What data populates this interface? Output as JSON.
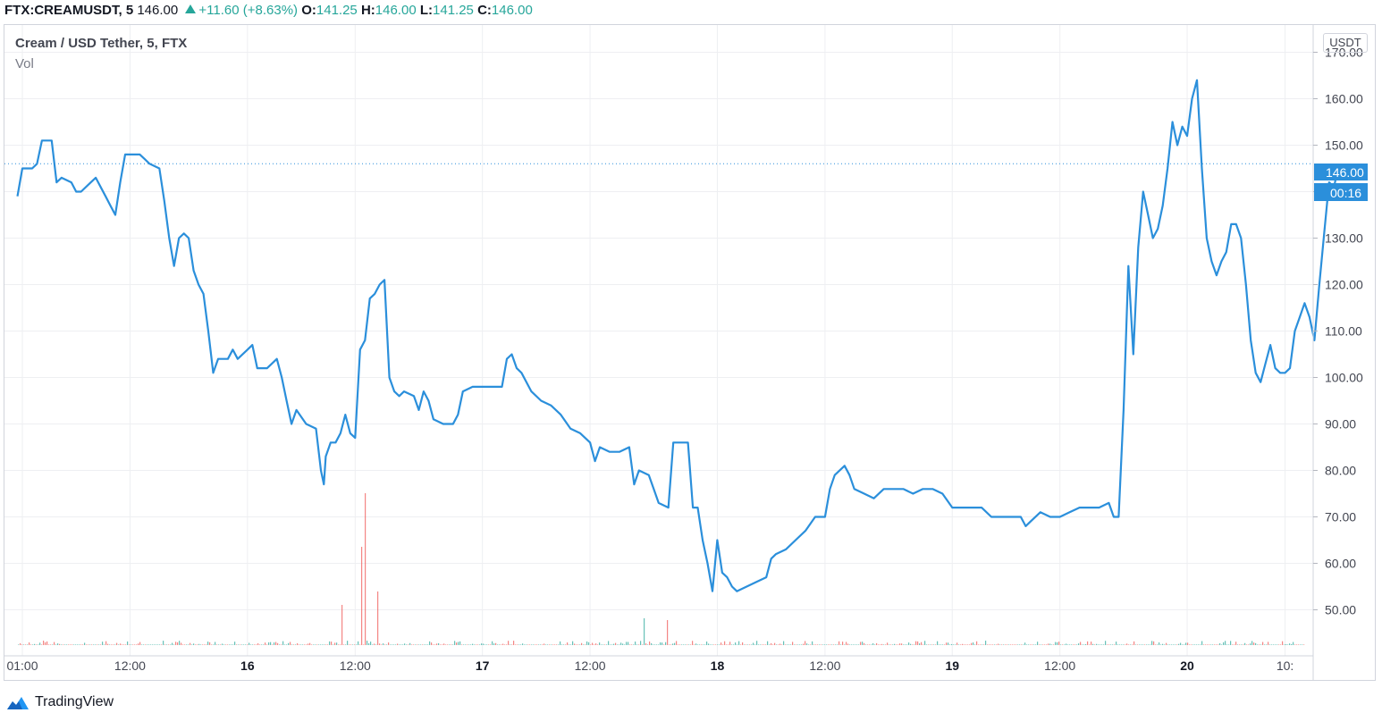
{
  "header": {
    "symbol": "FTX:CREAMUSDT, 5",
    "last": "146.00",
    "change": "+11.60 (+8.63%)",
    "o_label": "O:",
    "o_value": "141.25",
    "h_label": "H:",
    "h_value": "146.00",
    "l_label": "L:",
    "l_value": "141.25",
    "c_label": "C:",
    "c_value": "146.00"
  },
  "legend": {
    "title": "Cream / USD Tether, 5, FTX",
    "volume": "Vol"
  },
  "price_axis": {
    "currency": "USDT",
    "last_price_label": "146.00",
    "countdown": "00:16"
  },
  "footer": {
    "brand": "TradingView"
  },
  "colors": {
    "line": "#2b8fdb",
    "up": "#26a69a",
    "down": "#ef5350",
    "grid": "#eeeff2"
  },
  "chart_data": {
    "type": "line",
    "x_ticks": [
      {
        "t": 0,
        "label": "01:00"
      },
      {
        "t": 11,
        "label": "12:00"
      },
      {
        "t": 23,
        "label": "16"
      },
      {
        "t": 34,
        "label": "12:00"
      },
      {
        "t": 47,
        "label": "17"
      },
      {
        "t": 58,
        "label": "12:00"
      },
      {
        "t": 71,
        "label": "18"
      },
      {
        "t": 82,
        "label": "12:00"
      },
      {
        "t": 95,
        "label": "19"
      },
      {
        "t": 106,
        "label": "12:00"
      },
      {
        "t": 119,
        "label": "20"
      },
      {
        "t": 129,
        "label": "10:"
      }
    ],
    "y_ticks": [
      "170.00",
      "160.00",
      "150.00",
      "140.00",
      "130.00",
      "120.00",
      "110.00",
      "100.00",
      "90.00",
      "80.00",
      "70.00",
      "60.00",
      "50.00"
    ],
    "y_tick_values": [
      170,
      160,
      150,
      140,
      130,
      120,
      110,
      100,
      90,
      80,
      70,
      60,
      50
    ],
    "ylim": [
      42.4,
      175.6
    ],
    "xlim": [
      -1,
      131
    ],
    "last_value": 146,
    "series": [
      {
        "points": [
          [
            -0.5,
            139
          ],
          [
            0,
            145
          ],
          [
            1,
            145
          ],
          [
            1.5,
            146
          ],
          [
            2,
            151
          ],
          [
            3,
            151
          ],
          [
            3.5,
            142
          ],
          [
            4,
            143
          ],
          [
            5,
            142
          ],
          [
            5.5,
            140
          ],
          [
            6,
            140
          ],
          [
            7,
            142
          ],
          [
            7.5,
            143
          ],
          [
            8,
            141
          ],
          [
            8.5,
            139
          ],
          [
            9,
            137
          ],
          [
            9.5,
            135
          ],
          [
            10,
            142
          ],
          [
            10.5,
            148
          ],
          [
            11,
            148
          ],
          [
            12,
            148
          ],
          [
            12.5,
            147
          ],
          [
            13,
            146
          ],
          [
            14,
            145
          ],
          [
            14.5,
            138
          ],
          [
            15,
            130
          ],
          [
            15.5,
            124
          ],
          [
            16,
            130
          ],
          [
            16.5,
            131
          ],
          [
            17,
            130
          ],
          [
            17.5,
            123
          ],
          [
            18,
            120
          ],
          [
            18.5,
            118
          ],
          [
            19,
            110
          ],
          [
            19.5,
            101
          ],
          [
            20,
            104
          ],
          [
            21,
            104
          ],
          [
            21.5,
            106
          ],
          [
            22,
            104
          ],
          [
            23,
            106
          ],
          [
            23.5,
            107
          ],
          [
            24,
            102
          ],
          [
            25,
            102
          ],
          [
            26,
            104
          ],
          [
            26.5,
            100
          ],
          [
            27,
            95
          ],
          [
            27.5,
            90
          ],
          [
            28,
            93
          ],
          [
            29,
            90
          ],
          [
            30,
            89
          ],
          [
            30.5,
            80
          ],
          [
            30.8,
            77
          ],
          [
            31,
            83
          ],
          [
            31.5,
            86
          ],
          [
            32,
            86
          ],
          [
            32.5,
            88
          ],
          [
            33,
            92
          ],
          [
            33.5,
            88
          ],
          [
            34,
            87
          ],
          [
            34.5,
            106
          ],
          [
            35,
            108
          ],
          [
            35.5,
            117
          ],
          [
            36,
            118
          ],
          [
            36.5,
            120
          ],
          [
            37,
            121
          ],
          [
            37.5,
            100
          ],
          [
            38,
            97
          ],
          [
            38.5,
            96
          ],
          [
            39,
            97
          ],
          [
            40,
            96
          ],
          [
            40.5,
            93
          ],
          [
            41,
            97
          ],
          [
            41.5,
            95
          ],
          [
            42,
            91
          ],
          [
            43,
            90
          ],
          [
            44,
            90
          ],
          [
            44.5,
            92
          ],
          [
            45,
            97
          ],
          [
            46,
            98
          ],
          [
            47,
            98
          ],
          [
            48,
            98
          ],
          [
            49,
            98
          ],
          [
            49.5,
            104
          ],
          [
            50,
            105
          ],
          [
            50.5,
            102
          ],
          [
            51,
            101
          ],
          [
            52,
            97
          ],
          [
            53,
            95
          ],
          [
            54,
            94
          ],
          [
            55,
            92
          ],
          [
            56,
            89
          ],
          [
            57,
            88
          ],
          [
            58,
            86
          ],
          [
            58.5,
            82
          ],
          [
            59,
            85
          ],
          [
            60,
            84
          ],
          [
            61,
            84
          ],
          [
            62,
            85
          ],
          [
            62.5,
            77
          ],
          [
            63,
            80
          ],
          [
            64,
            79
          ],
          [
            64.5,
            76
          ],
          [
            65,
            73
          ],
          [
            66,
            72
          ],
          [
            66.5,
            86
          ],
          [
            67,
            86
          ],
          [
            68,
            86
          ],
          [
            68.5,
            72
          ],
          [
            69,
            72
          ],
          [
            69.5,
            65
          ],
          [
            70,
            60
          ],
          [
            70.5,
            54
          ],
          [
            71,
            65
          ],
          [
            71.5,
            58
          ],
          [
            72,
            57
          ],
          [
            72.5,
            55
          ],
          [
            73,
            54
          ],
          [
            74,
            55
          ],
          [
            75,
            56
          ],
          [
            76,
            57
          ],
          [
            76.5,
            61
          ],
          [
            77,
            62
          ],
          [
            78,
            63
          ],
          [
            79,
            65
          ],
          [
            80,
            67
          ],
          [
            81,
            70
          ],
          [
            82,
            70
          ],
          [
            82.5,
            76
          ],
          [
            83,
            79
          ],
          [
            84,
            81
          ],
          [
            84.5,
            79
          ],
          [
            85,
            76
          ],
          [
            86,
            75
          ],
          [
            87,
            74
          ],
          [
            88,
            76
          ],
          [
            89,
            76
          ],
          [
            90,
            76
          ],
          [
            91,
            75
          ],
          [
            92,
            76
          ],
          [
            93,
            76
          ],
          [
            94,
            75
          ],
          [
            95,
            72
          ],
          [
            96,
            72
          ],
          [
            97,
            72
          ],
          [
            98,
            72
          ],
          [
            99,
            70
          ],
          [
            100,
            70
          ],
          [
            101,
            70
          ],
          [
            102,
            70
          ],
          [
            102.5,
            68
          ],
          [
            103,
            69
          ],
          [
            104,
            71
          ],
          [
            105,
            70
          ],
          [
            106,
            70
          ],
          [
            107,
            71
          ],
          [
            108,
            72
          ],
          [
            109,
            72
          ],
          [
            110,
            72
          ],
          [
            111,
            73
          ],
          [
            111.5,
            70
          ],
          [
            112,
            70
          ],
          [
            112.5,
            93
          ],
          [
            113,
            124
          ],
          [
            113.5,
            105
          ],
          [
            114,
            128
          ],
          [
            114.5,
            140
          ],
          [
            115,
            135
          ],
          [
            115.5,
            130
          ],
          [
            116,
            132
          ],
          [
            116.5,
            137
          ],
          [
            117,
            145
          ],
          [
            117.5,
            155
          ],
          [
            118,
            150
          ],
          [
            118.5,
            154
          ],
          [
            119,
            152
          ],
          [
            119.5,
            160
          ],
          [
            120,
            164
          ],
          [
            120.5,
            145
          ],
          [
            121,
            130
          ],
          [
            121.5,
            125
          ],
          [
            122,
            122
          ],
          [
            122.5,
            125
          ],
          [
            123,
            127
          ],
          [
            123.5,
            133
          ],
          [
            124,
            133
          ],
          [
            124.5,
            130
          ],
          [
            125,
            120
          ],
          [
            125.5,
            108
          ],
          [
            126,
            101
          ],
          [
            126.5,
            99
          ],
          [
            127,
            103
          ],
          [
            127.5,
            107
          ],
          [
            128,
            102
          ],
          [
            128.5,
            101
          ],
          [
            129,
            101
          ],
          [
            129.5,
            102
          ],
          [
            130,
            110
          ],
          [
            130.5,
            113
          ],
          [
            131,
            116
          ],
          [
            131.5,
            113
          ],
          [
            132,
            108
          ],
          [
            132.5,
            120
          ],
          [
            133,
            131
          ],
          [
            133.5,
            142
          ],
          [
            134,
            141
          ],
          [
            134.5,
            146
          ]
        ]
      }
    ]
  }
}
